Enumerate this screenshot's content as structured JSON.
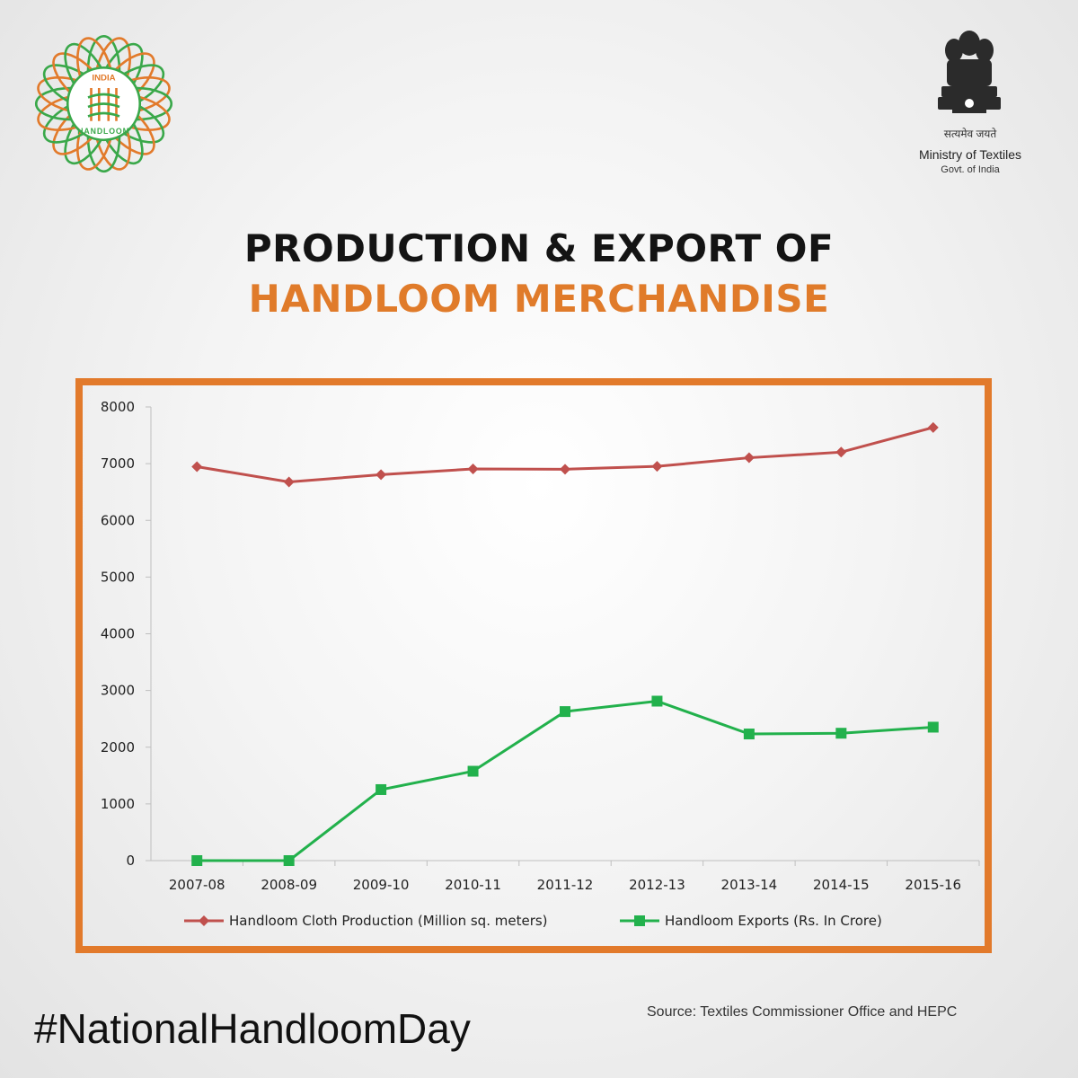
{
  "header": {
    "logo_text_top": "INDIA",
    "logo_text_bottom": "HANDLOOM",
    "emblem_motto": "सत्यमेव जयते",
    "ministry": "Ministry of Textiles",
    "govt": "Govt. of India"
  },
  "title": {
    "line1": "PRODUCTION & EXPORT OF",
    "line2": "HANDLOOM MERCHANDISE"
  },
  "colors": {
    "accent_orange": "#e27a2b",
    "production_red": "#c0504d",
    "exports_green": "#22b14c",
    "logo_green": "#3aa84a"
  },
  "chart_data": {
    "type": "line",
    "categories": [
      "2007-08",
      "2008-09",
      "2009-10",
      "2010-11",
      "2011-12",
      "2012-13",
      "2013-14",
      "2014-15",
      "2015-16"
    ],
    "yticks": [
      "0",
      "1000",
      "2000",
      "3000",
      "4000",
      "5000",
      "6000",
      "7000",
      "8000"
    ],
    "ylim": [
      0,
      8000
    ],
    "grid": false,
    "legend_position": "bottom",
    "series": [
      {
        "name": "Handloom Cloth Production (Million sq. meters)",
        "marker": "diamond",
        "values": [
          6947,
          6677,
          6806,
          6907,
          6901,
          6952,
          7104,
          7203,
          7638
        ]
      },
      {
        "name": "Handloom Exports (Rs. In Crore)",
        "marker": "square",
        "values": [
          0,
          0,
          1252,
          1576,
          2628,
          2812,
          2233,
          2246,
          2353
        ]
      }
    ]
  },
  "footer": {
    "hashtag": "#NationalHandloomDay",
    "source": "Source: Textiles Commissioner Office and HEPC"
  }
}
